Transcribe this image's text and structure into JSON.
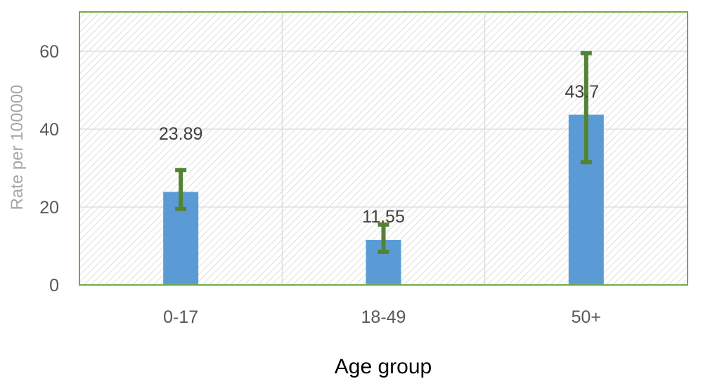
{
  "chart_data": {
    "type": "bar",
    "title": "",
    "xlabel": "Age group",
    "ylabel": "Rate per 100000",
    "categories": [
      "0-17",
      "18-49",
      "50+"
    ],
    "values": [
      23.89,
      11.55,
      43.7
    ],
    "data_labels": [
      "23.89",
      "11.55",
      "43.7"
    ],
    "error_bars": [
      {
        "low": 19.5,
        "high": 29.5
      },
      {
        "low": 8.5,
        "high": 15.5
      },
      {
        "low": 31.5,
        "high": 59.5
      }
    ],
    "ylim": [
      0,
      60
    ],
    "yticks": [
      0,
      20,
      40,
      60
    ],
    "grid": true,
    "legend": "none",
    "colors": {
      "bar": "#5b9bd5",
      "error_bar": "#548235",
      "plot_border": "#70ad47",
      "grid": "#d9d9d9",
      "hatch": "#d0d0d0"
    }
  }
}
